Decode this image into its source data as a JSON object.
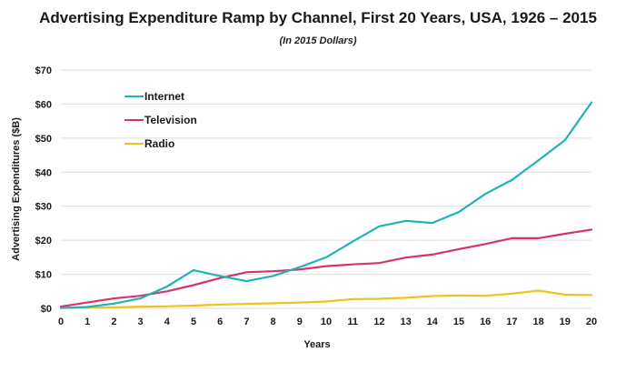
{
  "chart_data": {
    "type": "line",
    "title": "Advertising Expenditure Ramp by Channel, First 20 Years, USA, 1926 – 2015",
    "subtitle": "(In 2015 Dollars)",
    "xlabel": "Years",
    "ylabel": "Advertising Expenditures ($B)",
    "x": [
      0,
      1,
      2,
      3,
      4,
      5,
      6,
      7,
      8,
      9,
      10,
      11,
      12,
      13,
      14,
      15,
      16,
      17,
      18,
      19,
      20
    ],
    "xlim": [
      0,
      20
    ],
    "ylim": [
      0,
      70
    ],
    "yticks": [
      0,
      10,
      20,
      30,
      40,
      50,
      60,
      70
    ],
    "ytick_labels": [
      "$0",
      "$10",
      "$20",
      "$30",
      "$40",
      "$50",
      "$60",
      "$70"
    ],
    "xtick_labels": [
      "0",
      "1",
      "2",
      "3",
      "4",
      "5",
      "6",
      "7",
      "8",
      "9",
      "10",
      "11",
      "12",
      "13",
      "14",
      "15",
      "16",
      "17",
      "18",
      "19",
      "20"
    ],
    "grid": "horizontal",
    "legend_position": "top-left",
    "series": [
      {
        "name": "Internet",
        "color": "#20b2b5",
        "values": [
          0.1,
          0.4,
          1.4,
          2.9,
          6.4,
          11.2,
          9.5,
          8.0,
          9.5,
          12.1,
          15.0,
          19.6,
          24.1,
          25.7,
          25.1,
          28.3,
          33.6,
          37.7,
          43.5,
          49.4,
          60.5
        ]
      },
      {
        "name": "Television",
        "color": "#d6336c",
        "values": [
          0.5,
          1.7,
          2.9,
          3.7,
          5.0,
          6.8,
          8.9,
          10.6,
          10.9,
          11.4,
          12.4,
          12.9,
          13.3,
          14.9,
          15.8,
          17.4,
          18.9,
          20.6,
          20.6,
          21.9,
          23.1
        ]
      },
      {
        "name": "Radio",
        "color": "#f3c21a",
        "values": [
          0.2,
          0.2,
          0.3,
          0.5,
          0.6,
          0.8,
          1.1,
          1.3,
          1.5,
          1.7,
          2.0,
          2.7,
          2.8,
          3.1,
          3.6,
          3.8,
          3.7,
          4.3,
          5.2,
          4.0,
          3.9
        ]
      }
    ]
  }
}
